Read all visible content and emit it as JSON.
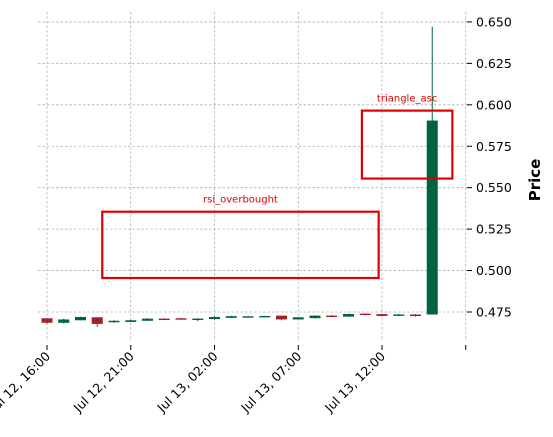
{
  "chart_data": {
    "type": "candlestick",
    "ylabel": "Price",
    "ylim": [
      0.4575,
      0.656
    ],
    "yticks": [
      0.475,
      0.5,
      0.525,
      0.55,
      0.575,
      0.6,
      0.625,
      0.65
    ],
    "ytick_labels": [
      "0.475",
      "0.500",
      "0.525",
      "0.550",
      "0.575",
      "0.600",
      "0.625",
      "0.650"
    ],
    "xticks": [
      {
        "index": 0,
        "label": "Jul 12, 16:00"
      },
      {
        "index": 5,
        "label": "Jul 12, 21:00"
      },
      {
        "index": 10,
        "label": "Jul 13, 02:00"
      },
      {
        "index": 15,
        "label": "Jul 13, 07:00"
      },
      {
        "index": 20,
        "label": "Jul 13, 12:00"
      },
      {
        "index": 25,
        "label": ""
      }
    ],
    "grid": true,
    "up_color": "#006340",
    "down_color": "#a02128",
    "annotation_color": "#e00000",
    "candles": [
      {
        "t": "Jul 12, 16:00",
        "o": 0.4712,
        "h": 0.4712,
        "l": 0.4678,
        "c": 0.4685
      },
      {
        "t": "Jul 12, 17:00",
        "o": 0.4685,
        "h": 0.471,
        "l": 0.468,
        "c": 0.4705
      },
      {
        "t": "Jul 12, 18:00",
        "o": 0.47,
        "h": 0.4722,
        "l": 0.47,
        "c": 0.472
      },
      {
        "t": "Jul 12, 19:00",
        "o": 0.4718,
        "h": 0.4718,
        "l": 0.466,
        "c": 0.4678
      },
      {
        "t": "Jul 12, 20:00",
        "o": 0.4688,
        "h": 0.47,
        "l": 0.4685,
        "c": 0.4697
      },
      {
        "t": "Jul 12, 21:00",
        "o": 0.469,
        "h": 0.4702,
        "l": 0.469,
        "c": 0.47
      },
      {
        "t": "Jul 12, 22:00",
        "o": 0.4697,
        "h": 0.4712,
        "l": 0.4697,
        "c": 0.471
      },
      {
        "t": "Jul 12, 23:00",
        "o": 0.471,
        "h": 0.4713,
        "l": 0.4705,
        "c": 0.4707
      },
      {
        "t": "Jul 13, 00:00",
        "o": 0.4712,
        "h": 0.4714,
        "l": 0.4706,
        "c": 0.4708
      },
      {
        "t": "Jul 13, 01:00",
        "o": 0.4708,
        "h": 0.4713,
        "l": 0.4695,
        "c": 0.471
      },
      {
        "t": "Jul 13, 02:00",
        "o": 0.4708,
        "h": 0.4725,
        "l": 0.4705,
        "c": 0.472
      },
      {
        "t": "Jul 13, 03:00",
        "o": 0.4715,
        "h": 0.4727,
        "l": 0.4713,
        "c": 0.4725
      },
      {
        "t": "Jul 13, 04:00",
        "o": 0.472,
        "h": 0.4726,
        "l": 0.4718,
        "c": 0.4724
      },
      {
        "t": "Jul 13, 05:00",
        "o": 0.4722,
        "h": 0.4727,
        "l": 0.472,
        "c": 0.4726
      },
      {
        "t": "Jul 13, 06:00",
        "o": 0.4728,
        "h": 0.4728,
        "l": 0.47,
        "c": 0.4705
      },
      {
        "t": "Jul 13, 07:00",
        "o": 0.4705,
        "h": 0.472,
        "l": 0.4705,
        "c": 0.4718
      },
      {
        "t": "Jul 13, 08:00",
        "o": 0.4713,
        "h": 0.473,
        "l": 0.471,
        "c": 0.4728
      },
      {
        "t": "Jul 13, 09:00",
        "o": 0.4728,
        "h": 0.4732,
        "l": 0.4722,
        "c": 0.4724
      },
      {
        "t": "Jul 13, 10:00",
        "o": 0.4722,
        "h": 0.474,
        "l": 0.4722,
        "c": 0.4738
      },
      {
        "t": "Jul 13, 11:00",
        "o": 0.474,
        "h": 0.4742,
        "l": 0.473,
        "c": 0.4733
      },
      {
        "t": "Jul 13, 12:00",
        "o": 0.4737,
        "h": 0.4738,
        "l": 0.4722,
        "c": 0.4726
      },
      {
        "t": "Jul 13, 13:00",
        "o": 0.4728,
        "h": 0.4738,
        "l": 0.4725,
        "c": 0.4735
      },
      {
        "t": "Jul 13, 14:00",
        "o": 0.4735,
        "h": 0.4738,
        "l": 0.4722,
        "c": 0.4726
      },
      {
        "t": "Jul 13, 15:00",
        "o": 0.4735,
        "h": 0.647,
        "l": 0.4735,
        "c": 0.5905
      }
    ],
    "annotations": [
      {
        "label": "rsi_overbought",
        "x_start": 3.3,
        "x_end": 19.8,
        "y_low": 0.4955,
        "y_high": 0.5355
      },
      {
        "label": "triangle_asc",
        "x_start": 18.8,
        "x_end": 24.2,
        "y_low": 0.5555,
        "y_high": 0.5965
      }
    ]
  }
}
